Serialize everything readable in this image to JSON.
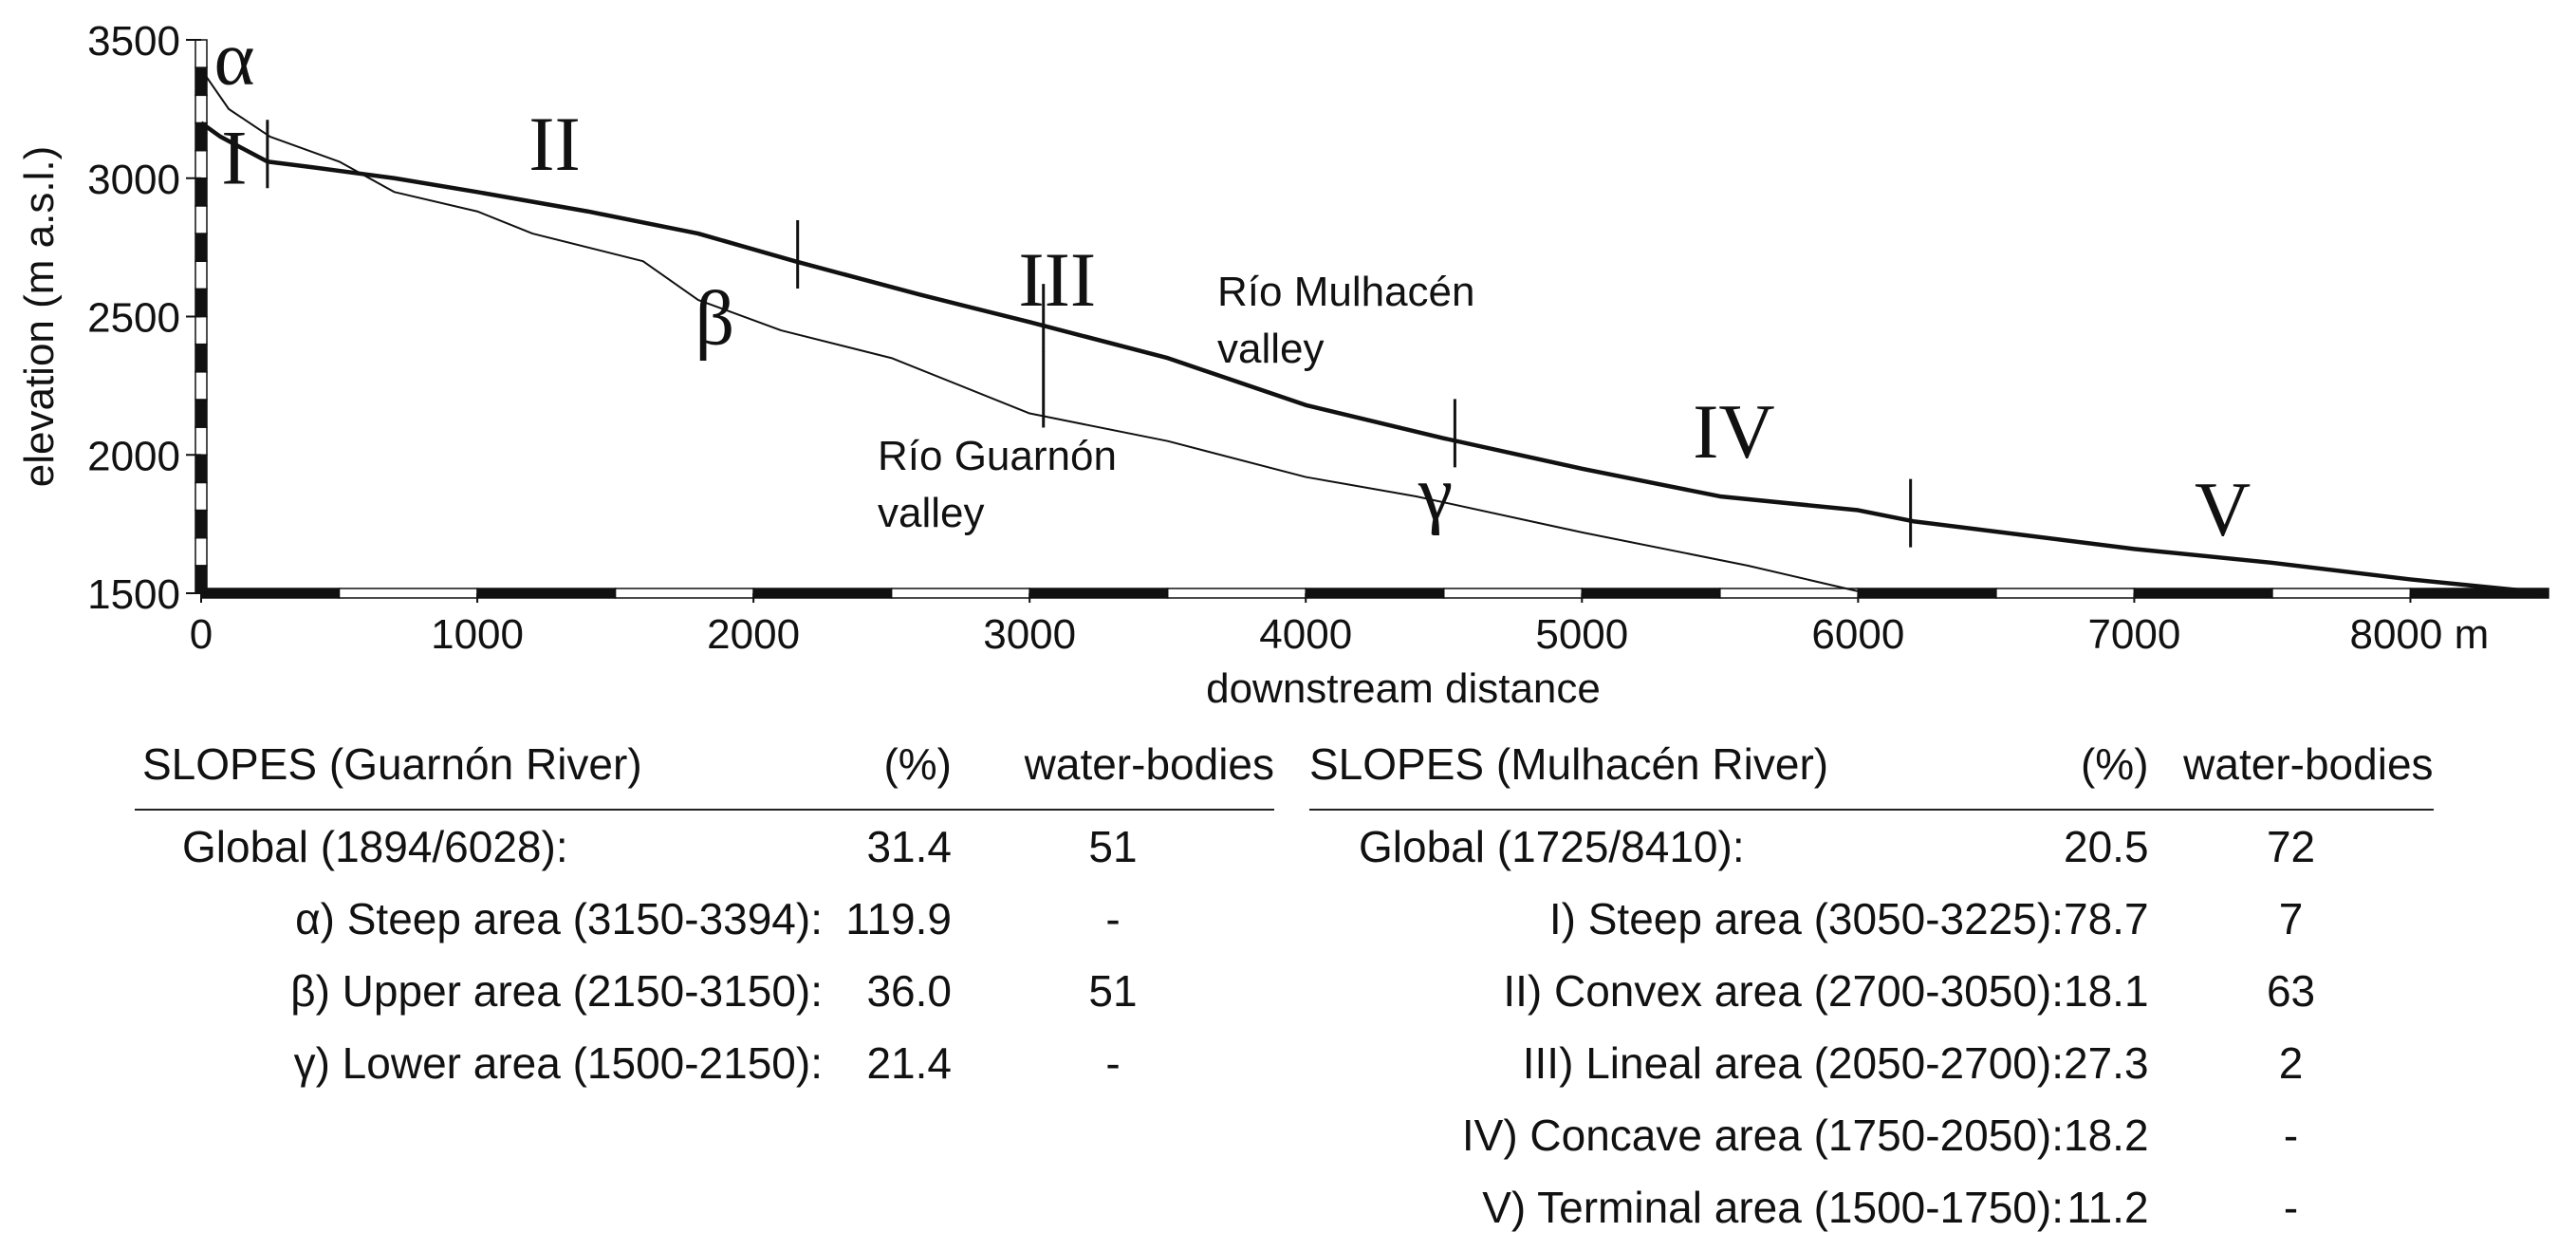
{
  "chart_data": {
    "type": "line",
    "ylabel": "elevation (m a.s.l.)",
    "xlabel": "downstream distance",
    "xlim": [
      0,
      8500
    ],
    "ylim": [
      1500,
      3500
    ],
    "x_ticks": [
      0,
      1000,
      2000,
      3000,
      4000,
      5000,
      6000,
      7000,
      8000
    ],
    "x_tick_labels": [
      "0",
      "1000",
      "2000",
      "3000",
      "4000",
      "5000",
      "6000",
      "7000",
      "8000 m"
    ],
    "y_ticks": [
      1500,
      2000,
      2500,
      3000,
      3500
    ],
    "y_tick_labels": [
      "1500",
      "2000",
      "2500",
      "3000",
      "3500"
    ],
    "series": [
      {
        "name": "Río Mulhacén valley",
        "label_lines": [
          "Río Mulhacén",
          "valley"
        ],
        "line": "thick",
        "x": [
          0,
          70,
          240,
          400,
          700,
          1000,
          1400,
          1800,
          2150,
          2600,
          3000,
          3500,
          4000,
          4500,
          5000,
          5500,
          6000,
          6200,
          6600,
          7000,
          7500,
          8000,
          8500
        ],
        "y": [
          3200,
          3150,
          3060,
          3040,
          3000,
          2950,
          2880,
          2800,
          2700,
          2580,
          2480,
          2350,
          2180,
          2060,
          1950,
          1850,
          1800,
          1760,
          1710,
          1660,
          1610,
          1550,
          1500
        ],
        "segment_breaks": [
          240,
          2160,
          3050,
          4540,
          6190
        ],
        "segment_labels": [
          {
            "text": "I",
            "x": 120,
            "y": 2980
          },
          {
            "text": "II",
            "x": 1280,
            "y": 3030
          },
          {
            "text": "III",
            "x": 3100,
            "y": 2540
          },
          {
            "text": "IV",
            "x": 5550,
            "y": 1990
          },
          {
            "text": "V",
            "x": 7320,
            "y": 1710
          }
        ]
      },
      {
        "name": "Río Guarnón valley",
        "label_lines": [
          "Río Guarnón",
          "valley"
        ],
        "line": "thin",
        "x": [
          0,
          100,
          250,
          500,
          700,
          1000,
          1200,
          1600,
          1800,
          2100,
          2500,
          3000,
          3500,
          4000,
          4400,
          5000,
          5600,
          6030
        ],
        "y": [
          3394,
          3250,
          3150,
          3060,
          2950,
          2880,
          2800,
          2700,
          2560,
          2450,
          2350,
          2150,
          2050,
          1920,
          1850,
          1720,
          1600,
          1500
        ],
        "segment_breaks": [
          3050
        ],
        "segment_labels": [
          {
            "text": "α",
            "x": 120,
            "y": 3340
          },
          {
            "text": "β",
            "x": 1860,
            "y": 2400
          },
          {
            "text": "γ",
            "x": 4470,
            "y": 1770
          }
        ]
      }
    ]
  },
  "tables": {
    "guarnon": {
      "headers": [
        "SLOPES (Guarnón River)",
        "(%)",
        "water-bodies"
      ],
      "rows": [
        {
          "label": "Global (1894/6028):",
          "pct": "31.4",
          "wb": "51"
        },
        {
          "label": "α) Steep area (3150-3394):",
          "pct": "119.9",
          "wb": "-"
        },
        {
          "label": "β) Upper area (2150-3150):",
          "pct": "36.0",
          "wb": "51"
        },
        {
          "label": "γ) Lower area (1500-2150):",
          "pct": "21.4",
          "wb": "-"
        }
      ]
    },
    "mulhacen": {
      "headers": [
        "SLOPES (Mulhacén River)",
        "(%)",
        "water-bodies"
      ],
      "rows": [
        {
          "label": "Global (1725/8410):",
          "pct": "20.5",
          "wb": "72"
        },
        {
          "label": "I) Steep area (3050-3225):",
          "pct": "78.7",
          "wb": "7"
        },
        {
          "label": "II) Convex area (2700-3050):",
          "pct": "18.1",
          "wb": "63"
        },
        {
          "label": "III) Lineal area (2050-2700):",
          "pct": "27.3",
          "wb": "2"
        },
        {
          "label": "IV) Concave area (1750-2050):",
          "pct": "18.2",
          "wb": "-"
        },
        {
          "label": "V) Terminal area (1500-1750):",
          "pct": "11.2",
          "wb": "-"
        }
      ]
    }
  }
}
